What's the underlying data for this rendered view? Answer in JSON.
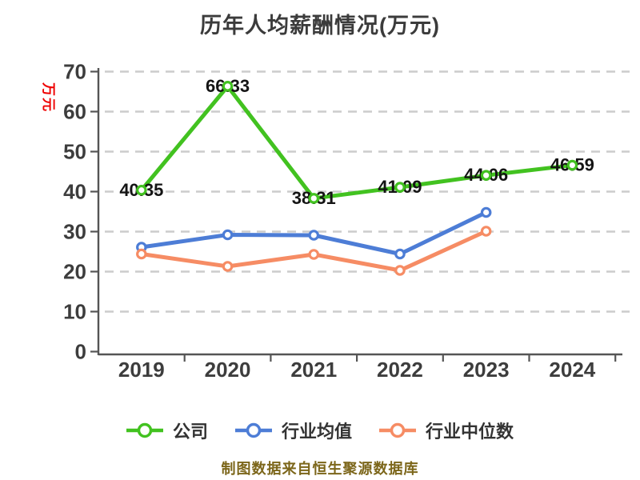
{
  "chart_data": {
    "type": "line",
    "title": "历年人均薪酬情况(万元)",
    "ylabel": "万元",
    "xlabel": "",
    "footer": "制图数据来自恒生聚源数据库",
    "categories": [
      "2019",
      "2020",
      "2021",
      "2022",
      "2023",
      "2024"
    ],
    "series": [
      {
        "name": "公司",
        "color": "#42c220",
        "show_labels": true,
        "values": [
          40.35,
          66.33,
          38.31,
          41.09,
          44.06,
          46.59
        ],
        "labels": [
          "40.35",
          "66.33",
          "38.31",
          "41.09",
          "44.06",
          "46.59"
        ]
      },
      {
        "name": "行业均值",
        "color": "#4d7dd6",
        "show_labels": false,
        "values": [
          26.1,
          29.2,
          29.1,
          24.4,
          34.8,
          null
        ],
        "labels": []
      },
      {
        "name": "行业中位数",
        "color": "#f68c64",
        "show_labels": false,
        "values": [
          24.4,
          21.3,
          24.3,
          20.3,
          30.1,
          null
        ],
        "labels": []
      }
    ],
    "ylim": [
      0,
      70
    ],
    "ytick_step": 10,
    "yticks": [
      "0",
      "10",
      "20",
      "30",
      "40",
      "50",
      "60",
      "70"
    ],
    "grid": "horizontal-dashed",
    "legend_position": "bottom",
    "colors": {
      "title": "#3b3b3b",
      "axis": "#555555",
      "tick_label": "#3d3d3d",
      "grid": "#cccccc",
      "value_label": "#141414",
      "ylabel": "#ee0000",
      "legend_text": "#333333",
      "footer": "#7c661a",
      "marker_fill": "#ffffff",
      "background": "#ffffff"
    }
  }
}
